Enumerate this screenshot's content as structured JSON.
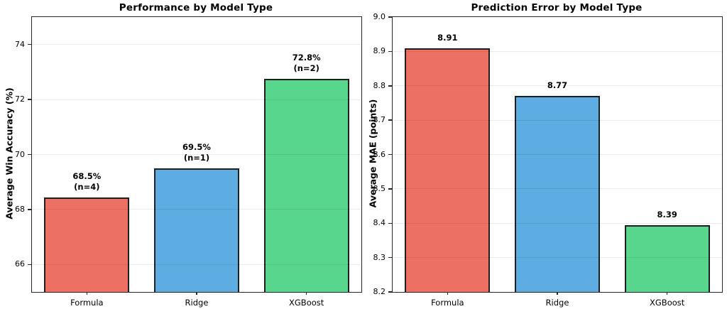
{
  "figure": {
    "background": "#ffffff",
    "spine_color": "#262626",
    "grid_color": "rgba(0,0,0,0.08)",
    "bar_edge_color": "#1f1f1f"
  },
  "chart_data": [
    {
      "type": "bar",
      "title": "Performance by Model Type",
      "ylabel": "Average Win Accuracy (%)",
      "categories": [
        "Formula",
        "Ridge",
        "XGBoost"
      ],
      "values": [
        68.45,
        69.5,
        72.75
      ],
      "bar_labels": [
        [
          "68.5%",
          "(n=4)"
        ],
        [
          "69.5%",
          "(n=1)"
        ],
        [
          "72.8%",
          "(n=2)"
        ]
      ],
      "bar_colors": [
        "#EC7063",
        "#5DADE2",
        "#58D68D"
      ],
      "ylim": [
        65,
        75
      ],
      "yticks": [
        66,
        68,
        70,
        72,
        74
      ],
      "ytick_labels": [
        "66",
        "68",
        "70",
        "72",
        "74"
      ],
      "grid": true,
      "legend": "none"
    },
    {
      "type": "bar",
      "title": "Prediction Error by Model Type",
      "ylabel": "Average MAE (points)",
      "categories": [
        "Formula",
        "Ridge",
        "XGBoost"
      ],
      "values": [
        8.91,
        8.77,
        8.395
      ],
      "bar_labels": [
        [
          "8.91"
        ],
        [
          "8.77"
        ],
        [
          "8.39"
        ]
      ],
      "bar_colors": [
        "#EC7063",
        "#5DADE2",
        "#58D68D"
      ],
      "ylim": [
        8.2,
        9.0
      ],
      "yticks": [
        8.2,
        8.3,
        8.4,
        8.5,
        8.6,
        8.7,
        8.8,
        8.9,
        9.0
      ],
      "ytick_labels": [
        "8.2",
        "8.3",
        "8.4",
        "8.5",
        "8.6",
        "8.7",
        "8.8",
        "8.9",
        "9.0"
      ],
      "grid": true,
      "legend": "none"
    }
  ]
}
